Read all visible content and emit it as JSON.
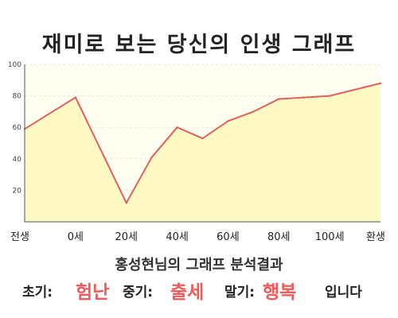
{
  "title": "재미로 보는 당신의 인생 그래프",
  "chart_data": {
    "type": "area",
    "title": "재미로 보는 당신의 인생 그래프",
    "x_labels": [
      "전생",
      "0세",
      "20세",
      "40세",
      "60세",
      "80세",
      "100세",
      "환생"
    ],
    "y_ticks": [
      "20",
      "40",
      "60",
      "80",
      "100"
    ],
    "ylim": [
      0,
      100
    ],
    "grid": true,
    "points": [
      {
        "x": "전생",
        "y": 59
      },
      {
        "x": "0세",
        "y": 79
      },
      {
        "x": "20세",
        "y": 12
      },
      {
        "x": "30세",
        "y": 41
      },
      {
        "x": "40세",
        "y": 60
      },
      {
        "x": "50세",
        "y": 53
      },
      {
        "x": "60세",
        "y": 64
      },
      {
        "x": "70세",
        "y": 70
      },
      {
        "x": "80세",
        "y": 78
      },
      {
        "x": "90세",
        "y": 79
      },
      {
        "x": "100세",
        "y": 80
      },
      {
        "x": "환생",
        "y": 88
      }
    ],
    "colors": {
      "line": "#e06060",
      "fill": "#fffac4",
      "plot_bg": "#fffef0",
      "grid": "#e8e8d8"
    }
  },
  "result": {
    "caption": "홍성현님의 그래프 분석결과",
    "early_label": "초기:",
    "early_value": "험난",
    "mid_label": "중기:",
    "mid_value": "출세",
    "late_label": "말기:",
    "late_value": "행복",
    "ending": "입니다"
  }
}
